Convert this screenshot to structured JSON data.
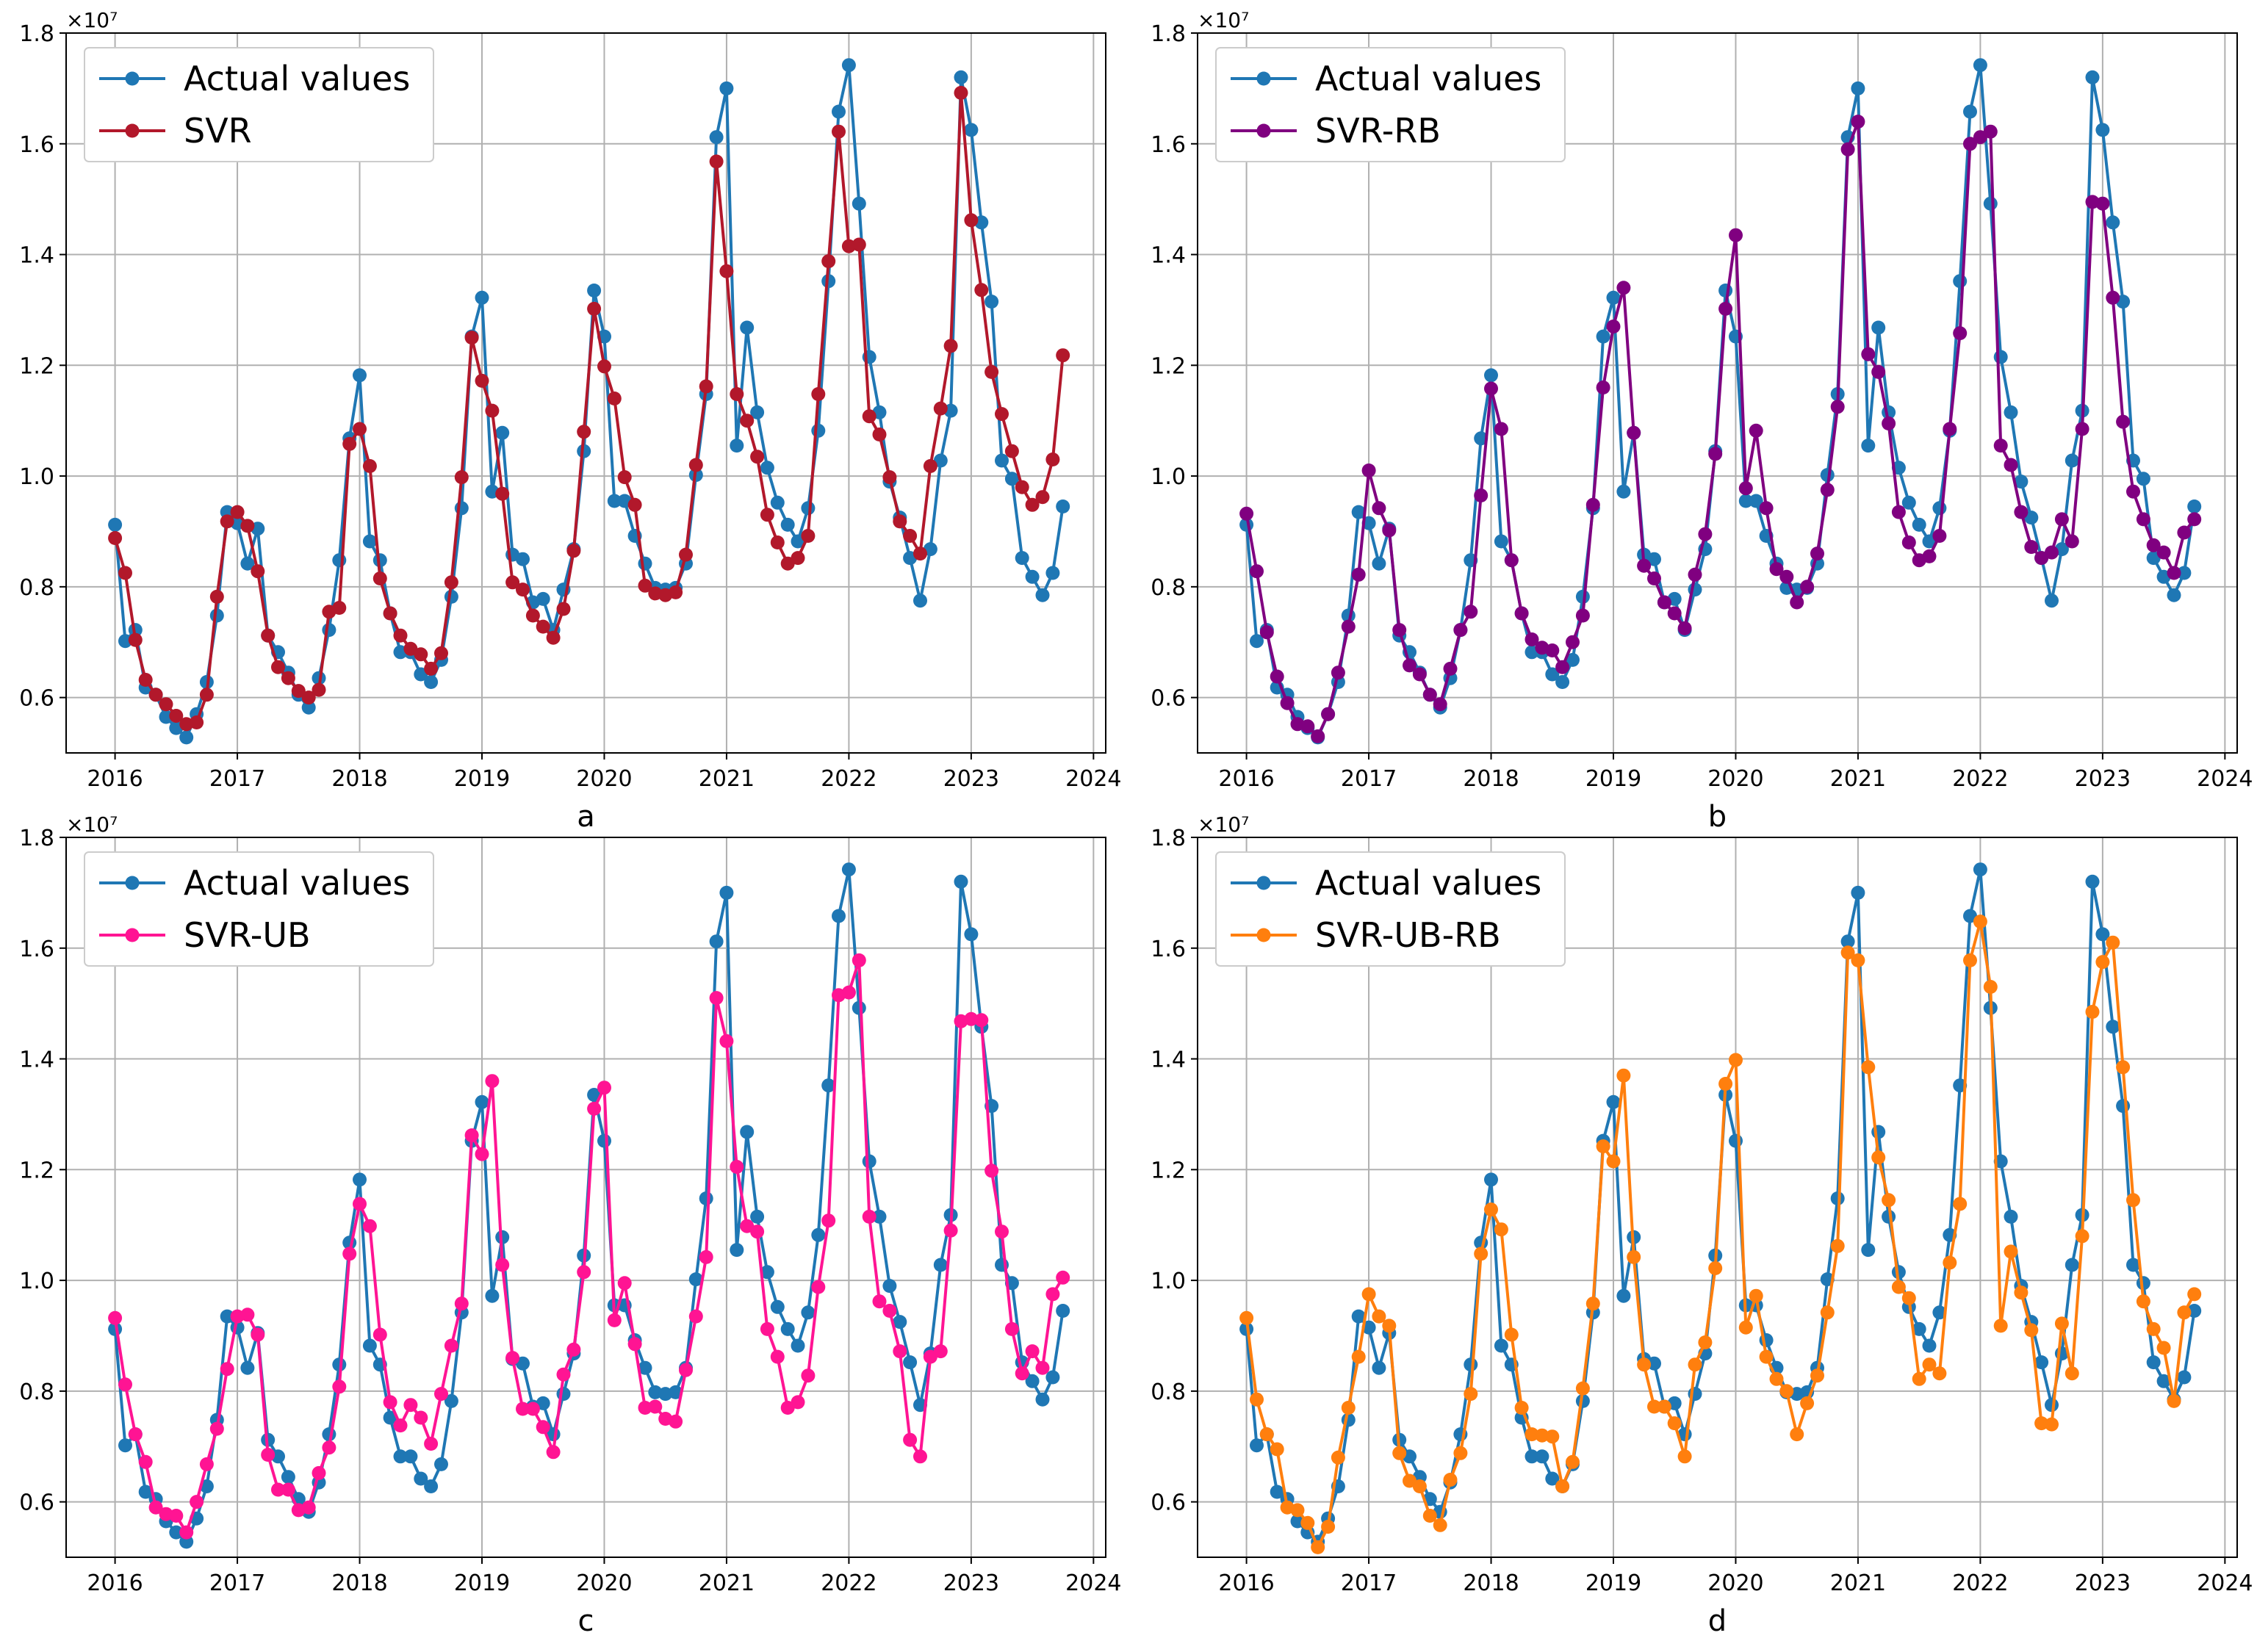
{
  "x_ticks": [
    "2016",
    "2017",
    "2018",
    "2019",
    "2020",
    "2021",
    "2022",
    "2023",
    "2024"
  ],
  "y_ticks": [
    "0.6",
    "0.8",
    "1.0",
    "1.2",
    "1.4",
    "1.6",
    "1.8"
  ],
  "scale_label": "×10⁷",
  "chart_data": [
    {
      "panel": "a",
      "type": "line",
      "scale": 10000000,
      "xlim": [
        2015.6,
        2024.1
      ],
      "ylim": [
        0.5,
        1.8
      ],
      "grid": true,
      "legend_position": "top-left",
      "series": [
        {
          "name": "Actual values",
          "color": "#1f77b4",
          "ref": "actual"
        },
        {
          "name": "SVR",
          "color": "#b2182b",
          "values": [
            0.888,
            0.825,
            0.704,
            0.632,
            0.605,
            0.588,
            0.567,
            0.552,
            0.555,
            0.605,
            0.782,
            0.918,
            0.935,
            0.91,
            0.828,
            0.712,
            0.655,
            0.635,
            0.612,
            0.6,
            0.614,
            0.755,
            0.762,
            1.058,
            1.085,
            1.018,
            0.815,
            0.752,
            0.712,
            0.688,
            0.678,
            0.652,
            0.68,
            0.808,
            0.998,
            1.25,
            1.172,
            1.118,
            0.968,
            0.808,
            0.795,
            0.748,
            0.728,
            0.708,
            0.76,
            0.865,
            1.08,
            1.302,
            1.198,
            1.14,
            0.998,
            0.948,
            0.802,
            0.788,
            0.785,
            0.79,
            0.858,
            1.02,
            1.162,
            1.568,
            1.37,
            1.148,
            1.1,
            1.035,
            0.93,
            0.88,
            0.842,
            0.852,
            0.892,
            1.148,
            1.388,
            1.622,
            1.415,
            1.418,
            1.108,
            1.075,
            0.998,
            0.918,
            0.892,
            0.86,
            1.018,
            1.122,
            1.235,
            1.692,
            1.462,
            1.336,
            1.188,
            1.112,
            1.045,
            0.98,
            0.948,
            0.962,
            1.03,
            1.218
          ]
        }
      ]
    },
    {
      "panel": "b",
      "type": "line",
      "scale": 10000000,
      "xlim": [
        2015.6,
        2024.1
      ],
      "ylim": [
        0.5,
        1.8
      ],
      "grid": true,
      "legend_position": "top-left",
      "series": [
        {
          "name": "Actual values",
          "color": "#1f77b4",
          "ref": "actual"
        },
        {
          "name": "SVR-RB",
          "color": "#800080",
          "values": [
            0.932,
            0.828,
            0.718,
            0.638,
            0.59,
            0.552,
            0.548,
            0.53,
            0.57,
            0.645,
            0.728,
            0.822,
            1.01,
            0.942,
            0.902,
            0.722,
            0.658,
            0.642,
            0.605,
            0.588,
            0.652,
            0.722,
            0.755,
            0.965,
            1.158,
            1.085,
            0.848,
            0.752,
            0.705,
            0.69,
            0.685,
            0.655,
            0.7,
            0.748,
            0.948,
            1.16,
            1.27,
            1.34,
            1.078,
            0.838,
            0.815,
            0.772,
            0.752,
            0.725,
            0.822,
            0.895,
            1.04,
            1.302,
            1.435,
            0.978,
            1.082,
            0.942,
            0.832,
            0.818,
            0.772,
            0.8,
            0.86,
            0.975,
            1.125,
            1.59,
            1.64,
            1.22,
            1.188,
            1.095,
            0.935,
            0.88,
            0.848,
            0.855,
            0.892,
            1.085,
            1.258,
            1.6,
            1.612,
            1.622,
            1.055,
            1.02,
            0.935,
            0.872,
            0.852,
            0.862,
            0.922,
            0.882,
            1.085,
            1.495,
            1.492,
            1.322,
            1.098,
            0.972,
            0.922,
            0.875,
            0.862,
            0.825,
            0.898,
            0.922
          ]
        }
      ]
    },
    {
      "panel": "c",
      "type": "line",
      "scale": 10000000,
      "xlim": [
        2015.6,
        2024.1
      ],
      "ylim": [
        0.5,
        1.8
      ],
      "grid": true,
      "legend_position": "top-left",
      "series": [
        {
          "name": "Actual values",
          "color": "#1f77b4",
          "ref": "actual"
        },
        {
          "name": "SVR-UB",
          "color": "#ff1493",
          "values": [
            0.932,
            0.812,
            0.722,
            0.672,
            0.59,
            0.578,
            0.575,
            0.545,
            0.6,
            0.668,
            0.732,
            0.84,
            0.935,
            0.938,
            0.902,
            0.685,
            0.622,
            0.622,
            0.585,
            0.59,
            0.652,
            0.698,
            0.808,
            1.048,
            1.138,
            1.098,
            0.902,
            0.78,
            0.738,
            0.775,
            0.752,
            0.705,
            0.795,
            0.882,
            0.958,
            1.262,
            1.228,
            1.36,
            1.028,
            0.86,
            0.768,
            0.768,
            0.735,
            0.69,
            0.83,
            0.875,
            1.015,
            1.31,
            1.348,
            0.928,
            0.995,
            0.885,
            0.77,
            0.772,
            0.75,
            0.745,
            0.838,
            0.935,
            1.042,
            1.51,
            1.432,
            1.205,
            1.098,
            1.088,
            0.912,
            0.862,
            0.77,
            0.78,
            0.828,
            0.988,
            1.108,
            1.515,
            1.52,
            1.578,
            1.115,
            0.962,
            0.945,
            0.872,
            0.712,
            0.682,
            0.862,
            0.872,
            1.09,
            1.468,
            1.472,
            1.47,
            1.198,
            1.088,
            0.912,
            0.832,
            0.872,
            0.842,
            0.975,
            1.005
          ]
        }
      ]
    },
    {
      "panel": "d",
      "type": "line",
      "scale": 10000000,
      "xlim": [
        2015.6,
        2024.1
      ],
      "ylim": [
        0.5,
        1.8
      ],
      "grid": true,
      "legend_position": "top-left",
      "series": [
        {
          "name": "Actual values",
          "color": "#1f77b4",
          "ref": "actual"
        },
        {
          "name": "SVR-UB-RB",
          "color": "#ff7f0e",
          "values": [
            0.932,
            0.785,
            0.722,
            0.695,
            0.59,
            0.585,
            0.562,
            0.518,
            0.555,
            0.68,
            0.77,
            0.862,
            0.975,
            0.935,
            0.918,
            0.688,
            0.638,
            0.628,
            0.575,
            0.558,
            0.64,
            0.688,
            0.795,
            1.048,
            1.128,
            1.092,
            0.902,
            0.77,
            0.722,
            0.72,
            0.718,
            0.628,
            0.672,
            0.805,
            0.958,
            1.242,
            1.215,
            1.37,
            1.042,
            0.848,
            0.772,
            0.772,
            0.742,
            0.682,
            0.848,
            0.888,
            1.022,
            1.355,
            1.398,
            0.915,
            0.972,
            0.862,
            0.822,
            0.8,
            0.722,
            0.778,
            0.828,
            0.942,
            1.062,
            1.592,
            1.578,
            1.385,
            1.222,
            1.145,
            0.988,
            0.968,
            0.822,
            0.848,
            0.832,
            1.032,
            1.138,
            1.578,
            1.648,
            1.53,
            0.918,
            1.052,
            0.978,
            0.91,
            0.742,
            0.74,
            0.922,
            0.832,
            1.08,
            1.485,
            1.575,
            1.61,
            1.385,
            1.145,
            0.962,
            0.912,
            0.878,
            0.782,
            0.942,
            0.975
          ]
        }
      ]
    }
  ],
  "actual_values": [
    0.912,
    0.702,
    0.722,
    0.618,
    0.605,
    0.565,
    0.545,
    0.528,
    0.57,
    0.628,
    0.748,
    0.935,
    0.915,
    0.842,
    0.905,
    0.712,
    0.682,
    0.645,
    0.605,
    0.582,
    0.635,
    0.722,
    0.848,
    1.068,
    1.182,
    0.882,
    0.848,
    0.752,
    0.682,
    0.682,
    0.642,
    0.628,
    0.668,
    0.782,
    0.942,
    1.252,
    1.322,
    0.972,
    1.078,
    0.858,
    0.85,
    0.772,
    0.778,
    0.722,
    0.795,
    0.868,
    1.045,
    1.335,
    1.252,
    0.955,
    0.955,
    0.892,
    0.842,
    0.798,
    0.795,
    0.798,
    0.842,
    1.002,
    1.148,
    1.612,
    1.7,
    1.055,
    1.268,
    1.115,
    1.015,
    0.952,
    0.912,
    0.882,
    0.942,
    1.082,
    1.352,
    1.658,
    1.742,
    1.492,
    1.215,
    1.115,
    0.99,
    0.925,
    0.852,
    0.775,
    0.868,
    1.028,
    1.118,
    1.72,
    1.625,
    1.458,
    1.315,
    1.028,
    0.995,
    0.852,
    0.818,
    0.785,
    0.825,
    0.945
  ]
}
